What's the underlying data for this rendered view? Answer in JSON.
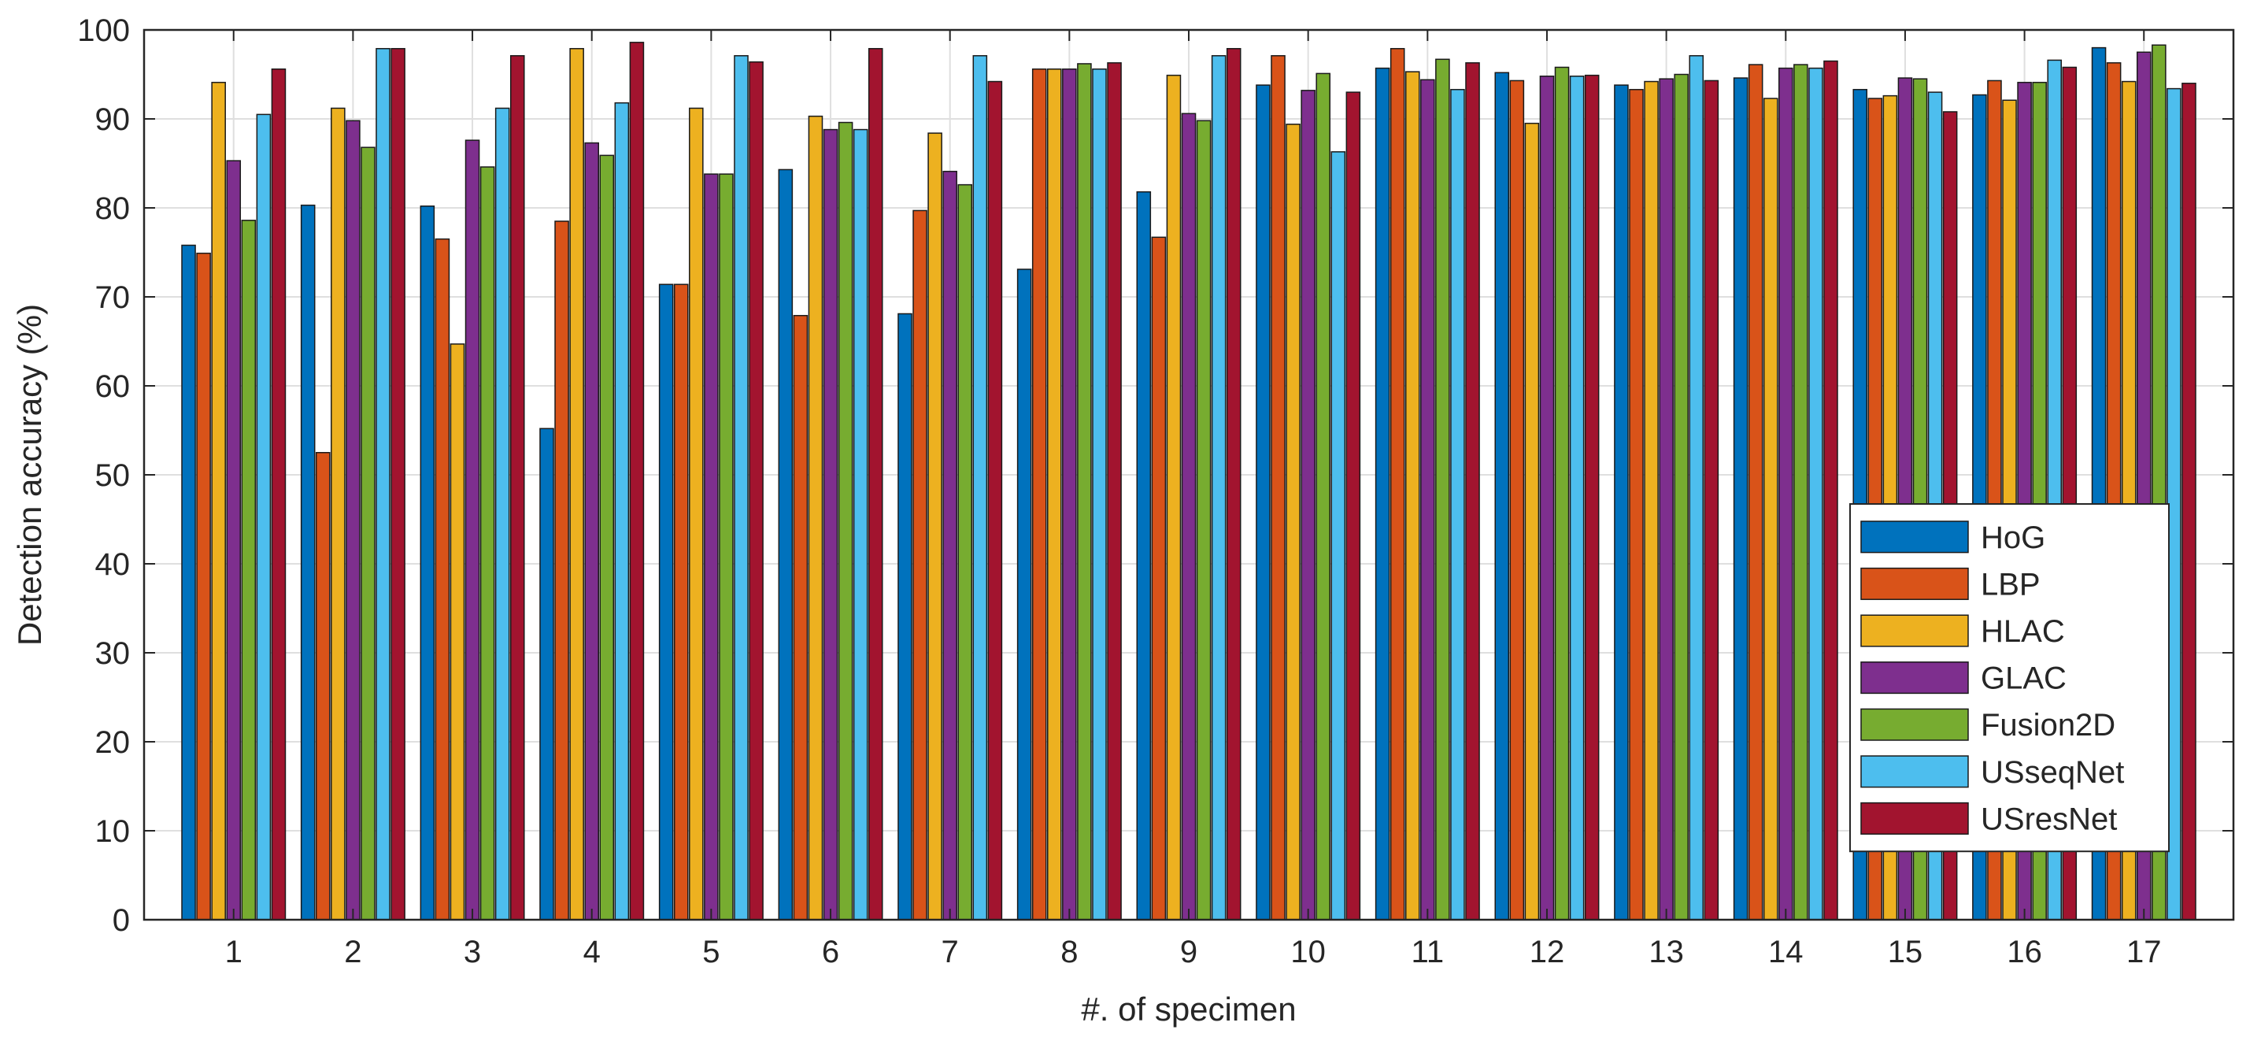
{
  "chart_data": {
    "type": "bar",
    "title": "",
    "xlabel": "#. of specimen",
    "ylabel": "Detection accuracy (%)",
    "ylim": [
      0,
      100
    ],
    "yticks": [
      0,
      10,
      20,
      30,
      40,
      50,
      60,
      70,
      80,
      90,
      100
    ],
    "grid": true,
    "legend_position": "bottom-right",
    "categories": [
      "1",
      "2",
      "3",
      "4",
      "5",
      "6",
      "7",
      "8",
      "9",
      "10",
      "11",
      "12",
      "13",
      "14",
      "15",
      "16",
      "17"
    ],
    "series": [
      {
        "name": "HoG",
        "color": "#0072BD",
        "values": [
          75.8,
          80.3,
          80.2,
          55.2,
          71.4,
          84.3,
          68.1,
          73.1,
          81.8,
          93.8,
          95.7,
          95.2,
          93.8,
          94.6,
          93.3,
          92.7,
          98.0
        ]
      },
      {
        "name": "LBP",
        "color": "#D95319",
        "values": [
          74.9,
          52.5,
          76.5,
          78.5,
          71.4,
          67.9,
          79.7,
          95.6,
          76.7,
          97.1,
          97.9,
          94.3,
          93.3,
          96.1,
          92.3,
          94.3,
          96.3
        ]
      },
      {
        "name": "HLAC",
        "color": "#EDB120",
        "values": [
          94.1,
          91.2,
          64.7,
          97.9,
          91.2,
          90.3,
          88.4,
          95.6,
          94.9,
          89.4,
          95.3,
          89.5,
          94.2,
          92.3,
          92.6,
          92.1,
          94.2
        ]
      },
      {
        "name": "GLAC",
        "color": "#7E2F8E",
        "values": [
          85.3,
          89.8,
          87.6,
          87.3,
          83.8,
          88.8,
          84.1,
          95.6,
          90.6,
          93.2,
          94.4,
          94.8,
          94.5,
          95.7,
          94.6,
          94.1,
          97.5
        ]
      },
      {
        "name": "Fusion2D",
        "color": "#77AC30",
        "values": [
          78.6,
          86.8,
          84.6,
          85.9,
          83.8,
          89.6,
          82.6,
          96.2,
          89.8,
          95.1,
          96.7,
          95.8,
          95.0,
          96.1,
          94.5,
          94.1,
          98.3
        ]
      },
      {
        "name": "USseqNet",
        "color": "#4DBEEE",
        "values": [
          90.5,
          97.9,
          91.2,
          91.8,
          97.1,
          88.8,
          97.1,
          95.6,
          97.1,
          86.3,
          93.3,
          94.8,
          97.1,
          95.7,
          93.0,
          96.6,
          93.4
        ]
      },
      {
        "name": "USresNet",
        "color": "#A2142F",
        "values": [
          95.6,
          97.9,
          97.1,
          98.6,
          96.4,
          97.9,
          94.2,
          96.3,
          97.9,
          93.0,
          96.3,
          94.9,
          94.3,
          96.5,
          90.8,
          95.8,
          94.0
        ]
      }
    ]
  }
}
